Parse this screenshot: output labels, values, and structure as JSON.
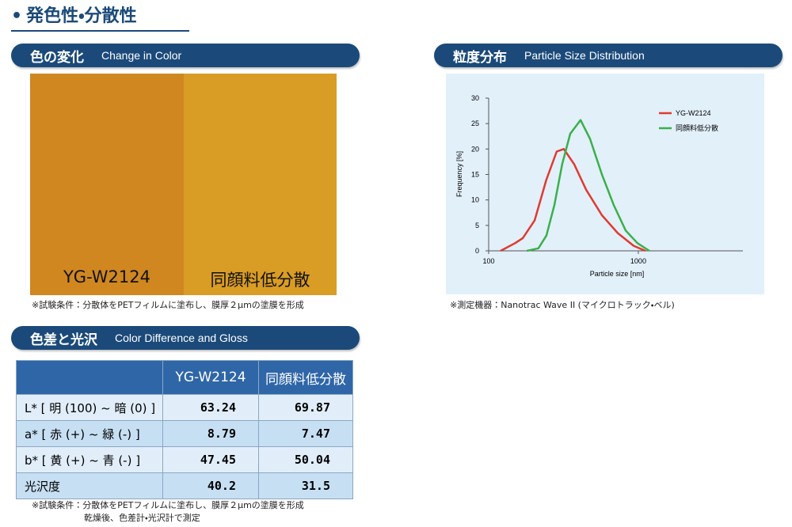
{
  "header": {
    "title": "発色性・分散性"
  },
  "color_change": {
    "title_ja": "色の変化",
    "title_en": "Change in Color",
    "labels": [
      "YG-W2124",
      "同顔料低分散"
    ],
    "note": "※試験条件：分散体をPETフィルムに塗布し、膜厚２μmの塗膜を形成"
  },
  "color_difference": {
    "title_ja": "色差と光沢",
    "title_en": "Color Difference and Gloss",
    "table": {
      "columns": [
        "YG-W2124",
        "同顔料低分散"
      ],
      "rows": [
        [
          "L* [ 明 (100) ~ 暗 (0) ]",
          63.24,
          69.87
        ],
        [
          "a* [ 赤 (+) ~ 緑 (-) ]",
          8.79,
          7.47
        ],
        [
          "b* [ 黄 (+) ~ 青 (-) ]",
          47.45,
          50.04
        ],
        [
          "光沢度",
          40.2,
          31.5
        ]
      ]
    },
    "notes": [
      "※試験条件：分散体をPETフィルムに塗布し、膜厚２μmの塗膜を形成",
      "乾燥後、色差計・光沢計で測定"
    ]
  },
  "particle_size": {
    "title_ja": "粒度分布",
    "title_en": "Particle Size Distribution",
    "note": "※測定機器：Nanotrac Wave II (マイクロトラック・ベル)"
  },
  "chart_data": {
    "type": "line",
    "xlabel": "Particle size [nm]",
    "ylabel": "Frequency [%]",
    "x_scale": "log",
    "xlim": [
      100,
      5000
    ],
    "xticks": [
      100,
      1000
    ],
    "ylim": [
      0,
      30
    ],
    "yticks": [
      0,
      5,
      10,
      15,
      20,
      25,
      30
    ],
    "grid": false,
    "legend": "top-right",
    "series": [
      {
        "name": "YG-W2124",
        "color": "#e03a2f",
        "x": [
          120,
          150,
          169,
          203,
          243,
          285,
          318,
          373,
          448,
          571,
          728,
          930,
          1116
        ],
        "values": [
          0,
          1.5,
          2.5,
          6,
          14,
          19.5,
          20,
          17,
          12,
          7,
          3.5,
          1,
          0
        ]
      },
      {
        "name": "同顔料低分散",
        "color": "#3bb04a",
        "x": [
          180,
          215,
          243,
          275,
          310,
          351,
          411,
          476,
          571,
          685,
          823,
          988,
          1186
        ],
        "values": [
          0,
          0.5,
          3,
          9,
          17,
          23,
          25.7,
          22,
          15,
          9,
          4,
          1.5,
          0
        ]
      }
    ]
  }
}
